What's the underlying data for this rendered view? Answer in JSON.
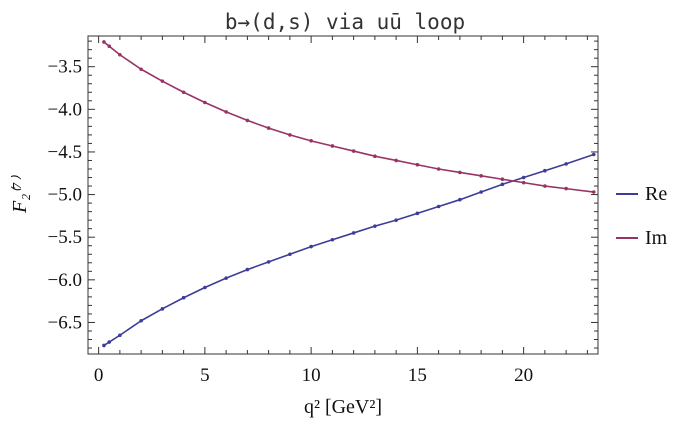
{
  "chart_data": {
    "type": "line",
    "title": "b→(d,s) via uū loop",
    "xlabel": "q² [GeV²]",
    "ylabel": "F₂⁽⁷⁾",
    "xlim": [
      -0.5,
      23.5
    ],
    "ylim": [
      -6.87,
      -3.14
    ],
    "x_ticks": [
      0,
      5,
      10,
      15,
      20
    ],
    "y_ticks": [
      -3.5,
      -4.0,
      -4.5,
      -5.0,
      -5.5,
      -6.0,
      -6.5
    ],
    "grid": false,
    "legend_position": "right",
    "series": [
      {
        "name": "Re",
        "color": "#3d3d99",
        "x": [
          0.25,
          0.5,
          1,
          2,
          3,
          4,
          5,
          6,
          7,
          8,
          9,
          10,
          11,
          12,
          13,
          14,
          15,
          16,
          17,
          18,
          19,
          20,
          21,
          22,
          23.3
        ],
        "values": [
          -6.77,
          -6.73,
          -6.65,
          -6.48,
          -6.34,
          -6.21,
          -6.09,
          -5.98,
          -5.88,
          -5.79,
          -5.7,
          -5.61,
          -5.53,
          -5.45,
          -5.37,
          -5.3,
          -5.22,
          -5.14,
          -5.06,
          -4.97,
          -4.88,
          -4.8,
          -4.72,
          -4.64,
          -4.53
        ]
      },
      {
        "name": "Im",
        "color": "#993366",
        "x": [
          0.25,
          0.5,
          1,
          2,
          3,
          4,
          5,
          6,
          7,
          8,
          9,
          10,
          11,
          12,
          13,
          14,
          15,
          16,
          17,
          18,
          19,
          20,
          21,
          22,
          23.3
        ],
        "values": [
          -3.21,
          -3.26,
          -3.36,
          -3.53,
          -3.67,
          -3.8,
          -3.92,
          -4.03,
          -4.13,
          -4.22,
          -4.3,
          -4.37,
          -4.43,
          -4.49,
          -4.55,
          -4.6,
          -4.65,
          -4.7,
          -4.74,
          -4.78,
          -4.82,
          -4.86,
          -4.9,
          -4.93,
          -4.97
        ]
      }
    ]
  }
}
